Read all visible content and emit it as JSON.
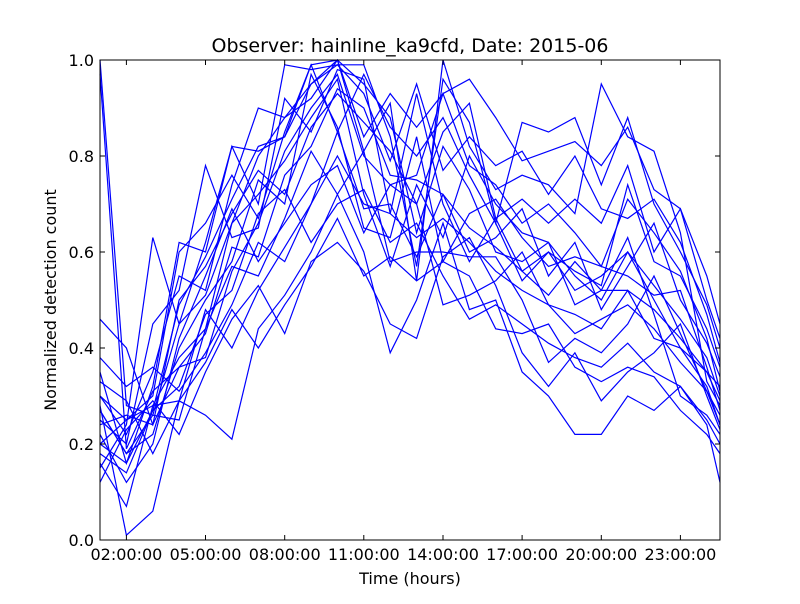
{
  "chart_data": {
    "type": "line",
    "title": "Observer: hainline_ka9cfd, Date: 2015-06",
    "xlabel": "Time (hours)",
    "ylabel": "Normalized detection count",
    "xlim": [
      1,
      24.5
    ],
    "ylim": [
      0,
      1
    ],
    "x_ticks": [
      2,
      5,
      8,
      11,
      14,
      17,
      20,
      23
    ],
    "x_tick_labels": [
      "02:00:00",
      "05:00:00",
      "08:00:00",
      "11:00:00",
      "14:00:00",
      "17:00:00",
      "20:00:00",
      "23:00:00"
    ],
    "y_ticks": [
      0,
      0.2,
      0.4,
      0.6,
      0.8,
      1.0
    ],
    "y_tick_labels": [
      "0.0",
      "0.2",
      "0.4",
      "0.6",
      "0.8",
      "1.0"
    ],
    "grid": false,
    "legend": "none",
    "line_color": "#0000ff",
    "x": [
      1,
      2,
      3,
      4,
      5,
      6,
      7,
      8,
      9,
      10,
      11,
      12,
      13,
      14,
      15,
      16,
      17,
      18,
      19,
      20,
      21,
      22,
      23,
      24,
      24.5
    ],
    "series": [
      {
        "values": [
          0.15,
          0.24,
          0.63,
          0.45,
          0.62,
          0.82,
          0.7,
          0.99,
          0.98,
          0.99,
          0.99,
          0.84,
          0.57,
          0.96,
          0.87,
          0.66,
          0.87,
          0.85,
          0.88,
          0.74,
          0.88,
          0.7,
          0.6,
          0.49,
          0.4
        ]
      },
      {
        "values": [
          0.2,
          0.25,
          0.28,
          0.38,
          0.44,
          0.66,
          0.8,
          0.88,
          0.95,
          1.0,
          0.81,
          0.91,
          0.54,
          1.0,
          0.82,
          0.73,
          0.76,
          0.74,
          0.68,
          0.95,
          0.84,
          0.81,
          0.64,
          0.33,
          0.28
        ]
      },
      {
        "values": [
          0.25,
          0.2,
          0.45,
          0.52,
          0.78,
          0.63,
          0.65,
          0.92,
          0.85,
          0.98,
          0.96,
          0.68,
          0.93,
          0.7,
          0.58,
          0.67,
          0.56,
          0.6,
          0.52,
          0.55,
          0.6,
          0.5,
          0.4,
          0.35,
          0.32
        ]
      },
      {
        "values": [
          0.3,
          0.22,
          0.35,
          0.55,
          0.52,
          0.74,
          0.9,
          0.88,
          0.92,
          1.0,
          0.95,
          0.88,
          0.64,
          0.82,
          0.73,
          0.6,
          0.58,
          0.62,
          0.55,
          0.5,
          0.6,
          0.53,
          0.46,
          0.38,
          0.3
        ]
      },
      {
        "values": [
          0.35,
          0.16,
          0.32,
          0.62,
          0.6,
          0.82,
          0.81,
          0.84,
          0.99,
          0.85,
          0.97,
          0.86,
          0.8,
          0.88,
          0.76,
          0.66,
          0.54,
          0.6,
          0.56,
          0.53,
          0.74,
          0.58,
          0.55,
          0.44,
          0.36
        ]
      },
      {
        "values": [
          1.0,
          0.28,
          0.26,
          0.45,
          0.51,
          0.66,
          0.72,
          0.79,
          0.88,
          0.96,
          0.72,
          0.57,
          0.74,
          0.63,
          0.8,
          0.7,
          0.64,
          0.62,
          0.49,
          0.52,
          0.63,
          0.47,
          0.3,
          0.26,
          0.22
        ]
      },
      {
        "values": [
          0.27,
          0.18,
          0.22,
          0.4,
          0.5,
          0.58,
          0.75,
          0.7,
          0.97,
          0.86,
          0.65,
          0.63,
          0.84,
          0.58,
          0.68,
          0.71,
          0.63,
          0.57,
          0.59,
          0.57,
          0.55,
          0.51,
          0.52,
          0.36,
          0.27
        ]
      },
      {
        "values": [
          0.46,
          0.4,
          0.24,
          0.36,
          0.43,
          0.61,
          0.59,
          0.76,
          0.82,
          0.94,
          0.9,
          0.76,
          0.75,
          0.72,
          0.6,
          0.63,
          0.69,
          0.55,
          0.62,
          0.48,
          0.57,
          0.66,
          0.5,
          0.41,
          0.34
        ]
      },
      {
        "values": [
          0.22,
          0.12,
          0.2,
          0.42,
          0.55,
          0.69,
          0.58,
          0.66,
          0.74,
          0.78,
          0.64,
          0.74,
          0.7,
          0.49,
          0.51,
          0.54,
          0.6,
          0.49,
          0.47,
          0.44,
          0.52,
          0.42,
          0.4,
          0.32,
          0.24
        ]
      },
      {
        "values": [
          0.18,
          0.14,
          0.27,
          0.32,
          0.47,
          0.52,
          0.68,
          0.73,
          0.62,
          0.7,
          0.73,
          0.62,
          0.66,
          0.55,
          0.46,
          0.49,
          0.45,
          0.41,
          0.38,
          0.36,
          0.41,
          0.35,
          0.32,
          0.25,
          0.2
        ]
      },
      {
        "values": [
          0.33,
          0.29,
          0.18,
          0.29,
          0.37,
          0.48,
          0.4,
          0.49,
          0.57,
          0.67,
          0.55,
          0.59,
          0.54,
          0.58,
          0.55,
          0.44,
          0.43,
          0.45,
          0.36,
          0.33,
          0.36,
          0.34,
          0.27,
          0.22,
          0.18
        ]
      },
      {
        "values": [
          0.28,
          0.01,
          0.06,
          0.29,
          0.26,
          0.21,
          0.44,
          0.51,
          0.6,
          0.72,
          0.6,
          0.39,
          0.5,
          0.66,
          0.48,
          0.5,
          0.35,
          0.3,
          0.22,
          0.22,
          0.3,
          0.27,
          0.32,
          0.24,
          0.12
        ]
      },
      {
        "values": [
          0.12,
          0.23,
          0.29,
          0.22,
          0.35,
          0.46,
          0.53,
          0.43,
          0.58,
          0.62,
          0.56,
          0.45,
          0.42,
          0.59,
          0.63,
          0.53,
          0.39,
          0.32,
          0.39,
          0.29,
          0.35,
          0.39,
          0.45,
          0.3,
          0.23
        ]
      },
      {
        "values": [
          0.27,
          0.18,
          0.26,
          0.25,
          0.44,
          0.57,
          0.55,
          0.67,
          0.81,
          0.72,
          0.81,
          0.58,
          0.6,
          0.6,
          0.59,
          0.59,
          0.5,
          0.37,
          0.42,
          0.39,
          0.45,
          0.55,
          0.43,
          0.31,
          0.26
        ]
      },
      {
        "values": [
          0.16,
          0.07,
          0.28,
          0.29,
          0.48,
          0.4,
          0.52,
          0.61,
          0.7,
          0.85,
          0.69,
          0.7,
          0.59,
          0.72,
          0.65,
          0.61,
          0.56,
          0.51,
          0.58,
          0.52,
          0.52,
          0.48,
          0.42,
          0.35,
          0.29
        ]
      },
      {
        "values": [
          0.97,
          0.19,
          0.31,
          0.36,
          0.38,
          0.56,
          0.66,
          0.81,
          0.9,
          0.97,
          0.8,
          0.74,
          0.76,
          0.93,
          0.78,
          0.74,
          0.66,
          0.7,
          0.64,
          0.57,
          0.71,
          0.64,
          0.56,
          0.42,
          0.31
        ]
      },
      {
        "values": [
          0.24,
          0.26,
          0.24,
          0.5,
          0.57,
          0.68,
          0.77,
          0.72,
          0.86,
          0.93,
          0.87,
          0.81,
          0.7,
          0.85,
          0.91,
          0.67,
          0.71,
          0.66,
          0.71,
          0.66,
          0.78,
          0.6,
          0.69,
          0.5,
          0.42
        ]
      },
      {
        "values": [
          0.2,
          0.16,
          0.27,
          0.49,
          0.59,
          0.71,
          0.82,
          0.84,
          0.95,
          0.99,
          0.93,
          0.79,
          0.95,
          0.77,
          0.84,
          0.78,
          0.81,
          0.72,
          0.8,
          0.69,
          0.67,
          0.71,
          0.62,
          0.47,
          0.37
        ]
      },
      {
        "values": [
          0.3,
          0.25,
          0.3,
          0.6,
          0.66,
          0.76,
          0.67,
          0.85,
          0.99,
          1.0,
          0.84,
          0.93,
          0.86,
          0.93,
          0.96,
          0.88,
          0.79,
          0.81,
          0.83,
          0.78,
          0.86,
          0.73,
          0.69,
          0.55,
          0.45
        ]
      },
      {
        "values": [
          0.38,
          0.32,
          0.36,
          0.31,
          0.39,
          0.49,
          0.62,
          0.58,
          0.7,
          0.8,
          0.7,
          0.68,
          0.63,
          0.67,
          0.62,
          0.56,
          0.52,
          0.49,
          0.43,
          0.46,
          0.49,
          0.44,
          0.37,
          0.31,
          0.24
        ]
      }
    ]
  }
}
